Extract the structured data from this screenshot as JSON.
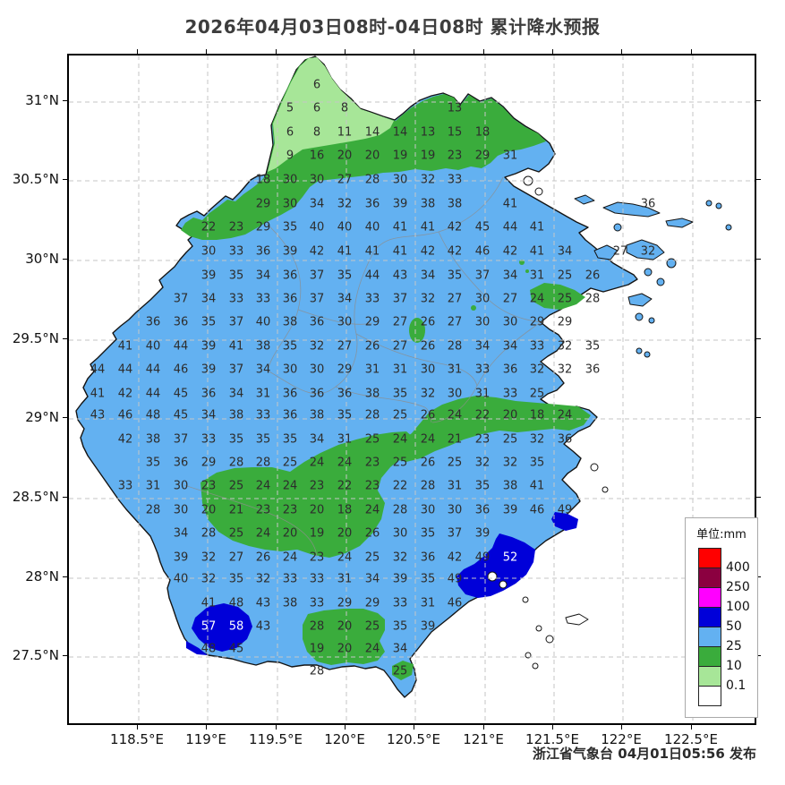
{
  "title": "2026年04月03日08时-04日08时 累计降水预报",
  "attribution": "浙江省气象台 04月01日05:56 发布",
  "colors": {
    "land": "#63b1f1",
    "green": "#3aac3c",
    "lightgreen": "#a7e698",
    "darkblue": "#0000d9",
    "magenta": "#ff00ff",
    "maroon": "#8b0040",
    "red": "#ff0000",
    "white": "#ffffff",
    "grid": "#c6c6c6"
  },
  "axes": {
    "x_ticks": [
      {
        "label": "118.5°E",
        "pos": 153
      },
      {
        "label": "119°E",
        "pos": 230
      },
      {
        "label": "119.5°E",
        "pos": 308
      },
      {
        "label": "120°E",
        "pos": 385
      },
      {
        "label": "120.5°E",
        "pos": 462
      },
      {
        "label": "121°E",
        "pos": 540
      },
      {
        "label": "121.5°E",
        "pos": 617
      },
      {
        "label": "122°E",
        "pos": 694
      },
      {
        "label": "122.5°E",
        "pos": 772
      }
    ],
    "y_ticks": [
      {
        "label": "31°N",
        "pos": 112
      },
      {
        "label": "30.5°N",
        "pos": 200
      },
      {
        "label": "30°N",
        "pos": 289
      },
      {
        "label": "29.5°N",
        "pos": 378
      },
      {
        "label": "29°N",
        "pos": 466
      },
      {
        "label": "28.5°N",
        "pos": 555
      },
      {
        "label": "28°N",
        "pos": 644
      },
      {
        "label": "27.5°N",
        "pos": 732
      }
    ]
  },
  "legend": {
    "title": "单位:mm",
    "entries": [
      {
        "color": "#ff0000",
        "label": "400"
      },
      {
        "color": "#8b0040",
        "label": "250"
      },
      {
        "color": "#ff00ff",
        "label": "100"
      },
      {
        "color": "#0000d9",
        "label": "50"
      },
      {
        "color": "#63b1f1",
        "label": "25"
      },
      {
        "color": "#3aac3c",
        "label": "10"
      },
      {
        "color": "#a7e698",
        "label": "0.1"
      },
      {
        "color": "#ffffff",
        "label": ""
      }
    ]
  },
  "map": {
    "values": [
      [
        352,
        93,
        6
      ],
      [
        322,
        119,
        5
      ],
      [
        352,
        119,
        6
      ],
      [
        383,
        119,
        8
      ],
      [
        506,
        119,
        13
      ],
      [
        322,
        146,
        6
      ],
      [
        352,
        146,
        8
      ],
      [
        383,
        146,
        11
      ],
      [
        414,
        146,
        14
      ],
      [
        445,
        146,
        14
      ],
      [
        476,
        146,
        13
      ],
      [
        506,
        146,
        15
      ],
      [
        537,
        146,
        18
      ],
      [
        322,
        172,
        9
      ],
      [
        352,
        172,
        16
      ],
      [
        383,
        172,
        20
      ],
      [
        414,
        172,
        20
      ],
      [
        445,
        172,
        19
      ],
      [
        476,
        172,
        19
      ],
      [
        506,
        172,
        23
      ],
      [
        537,
        172,
        29
      ],
      [
        568,
        172,
        31
      ],
      [
        292,
        199,
        18
      ],
      [
        322,
        199,
        30
      ],
      [
        352,
        199,
        30
      ],
      [
        383,
        199,
        27
      ],
      [
        414,
        199,
        28
      ],
      [
        445,
        199,
        30
      ],
      [
        476,
        199,
        32
      ],
      [
        506,
        199,
        33
      ],
      [
        292,
        226,
        29
      ],
      [
        322,
        226,
        30
      ],
      [
        352,
        226,
        34
      ],
      [
        383,
        226,
        32
      ],
      [
        414,
        226,
        36
      ],
      [
        445,
        226,
        39
      ],
      [
        476,
        226,
        38
      ],
      [
        506,
        226,
        38
      ],
      [
        568,
        226,
        41
      ],
      [
        722,
        226,
        36
      ],
      [
        231,
        252,
        22
      ],
      [
        262,
        252,
        23
      ],
      [
        292,
        252,
        29
      ],
      [
        322,
        252,
        35
      ],
      [
        352,
        252,
        40
      ],
      [
        383,
        252,
        40
      ],
      [
        414,
        252,
        40
      ],
      [
        445,
        252,
        41
      ],
      [
        476,
        252,
        41
      ],
      [
        506,
        252,
        42
      ],
      [
        537,
        252,
        45
      ],
      [
        568,
        252,
        44
      ],
      [
        598,
        252,
        41
      ],
      [
        231,
        279,
        30
      ],
      [
        262,
        279,
        33
      ],
      [
        292,
        279,
        36
      ],
      [
        322,
        279,
        39
      ],
      [
        352,
        279,
        42
      ],
      [
        383,
        279,
        41
      ],
      [
        414,
        279,
        41
      ],
      [
        445,
        279,
        41
      ],
      [
        476,
        279,
        42
      ],
      [
        506,
        279,
        42
      ],
      [
        537,
        279,
        46
      ],
      [
        568,
        279,
        42
      ],
      [
        598,
        279,
        41
      ],
      [
        629,
        279,
        34
      ],
      [
        691,
        279,
        27
      ],
      [
        722,
        279,
        32
      ],
      [
        231,
        306,
        39
      ],
      [
        262,
        306,
        35
      ],
      [
        292,
        306,
        34
      ],
      [
        322,
        306,
        36
      ],
      [
        352,
        306,
        37
      ],
      [
        383,
        306,
        35
      ],
      [
        414,
        306,
        44
      ],
      [
        445,
        306,
        43
      ],
      [
        476,
        306,
        34
      ],
      [
        506,
        306,
        35
      ],
      [
        537,
        306,
        37
      ],
      [
        568,
        306,
        34
      ],
      [
        598,
        306,
        31
      ],
      [
        629,
        306,
        25
      ],
      [
        660,
        306,
        26
      ],
      [
        200,
        332,
        37
      ],
      [
        231,
        332,
        34
      ],
      [
        262,
        332,
        33
      ],
      [
        292,
        332,
        33
      ],
      [
        322,
        332,
        36
      ],
      [
        352,
        332,
        37
      ],
      [
        383,
        332,
        34
      ],
      [
        414,
        332,
        33
      ],
      [
        445,
        332,
        37
      ],
      [
        476,
        332,
        32
      ],
      [
        506,
        332,
        27
      ],
      [
        537,
        332,
        30
      ],
      [
        568,
        332,
        27
      ],
      [
        598,
        332,
        24
      ],
      [
        629,
        332,
        25
      ],
      [
        660,
        332,
        28
      ],
      [
        169,
        358,
        36
      ],
      [
        200,
        358,
        36
      ],
      [
        231,
        358,
        35
      ],
      [
        262,
        358,
        37
      ],
      [
        292,
        358,
        40
      ],
      [
        322,
        358,
        38
      ],
      [
        352,
        358,
        36
      ],
      [
        383,
        358,
        30
      ],
      [
        414,
        358,
        29
      ],
      [
        445,
        358,
        27
      ],
      [
        476,
        358,
        26
      ],
      [
        506,
        358,
        27
      ],
      [
        537,
        358,
        30
      ],
      [
        568,
        358,
        30
      ],
      [
        598,
        358,
        29
      ],
      [
        629,
        358,
        29
      ],
      [
        138,
        385,
        41
      ],
      [
        169,
        385,
        40
      ],
      [
        200,
        385,
        44
      ],
      [
        231,
        385,
        39
      ],
      [
        262,
        385,
        41
      ],
      [
        292,
        385,
        38
      ],
      [
        322,
        385,
        35
      ],
      [
        352,
        385,
        32
      ],
      [
        383,
        385,
        27
      ],
      [
        414,
        385,
        26
      ],
      [
        445,
        385,
        27
      ],
      [
        476,
        385,
        26
      ],
      [
        506,
        385,
        28
      ],
      [
        537,
        385,
        34
      ],
      [
        568,
        385,
        34
      ],
      [
        598,
        385,
        33
      ],
      [
        629,
        385,
        32
      ],
      [
        660,
        385,
        35
      ],
      [
        107,
        411,
        44
      ],
      [
        138,
        411,
        44
      ],
      [
        169,
        411,
        44
      ],
      [
        200,
        411,
        46
      ],
      [
        231,
        411,
        39
      ],
      [
        262,
        411,
        37
      ],
      [
        292,
        411,
        34
      ],
      [
        322,
        411,
        30
      ],
      [
        352,
        411,
        30
      ],
      [
        383,
        411,
        29
      ],
      [
        414,
        411,
        31
      ],
      [
        445,
        411,
        31
      ],
      [
        476,
        411,
        30
      ],
      [
        506,
        411,
        31
      ],
      [
        537,
        411,
        33
      ],
      [
        568,
        411,
        36
      ],
      [
        598,
        411,
        32
      ],
      [
        629,
        411,
        32
      ],
      [
        660,
        411,
        36
      ],
      [
        107,
        438,
        41
      ],
      [
        138,
        438,
        42
      ],
      [
        169,
        438,
        44
      ],
      [
        200,
        438,
        45
      ],
      [
        231,
        438,
        36
      ],
      [
        262,
        438,
        34
      ],
      [
        292,
        438,
        31
      ],
      [
        322,
        438,
        36
      ],
      [
        352,
        438,
        36
      ],
      [
        383,
        438,
        36
      ],
      [
        414,
        438,
        38
      ],
      [
        445,
        438,
        35
      ],
      [
        476,
        438,
        32
      ],
      [
        506,
        438,
        30
      ],
      [
        537,
        438,
        31
      ],
      [
        568,
        438,
        33
      ],
      [
        598,
        438,
        25
      ],
      [
        107,
        462,
        43
      ],
      [
        138,
        462,
        46
      ],
      [
        169,
        462,
        48
      ],
      [
        200,
        462,
        45
      ],
      [
        231,
        462,
        34
      ],
      [
        262,
        462,
        38
      ],
      [
        292,
        462,
        33
      ],
      [
        322,
        462,
        36
      ],
      [
        352,
        462,
        38
      ],
      [
        383,
        462,
        35
      ],
      [
        414,
        462,
        28
      ],
      [
        445,
        462,
        25
      ],
      [
        476,
        462,
        26
      ],
      [
        506,
        462,
        24
      ],
      [
        537,
        462,
        22
      ],
      [
        568,
        462,
        20
      ],
      [
        598,
        462,
        18
      ],
      [
        629,
        462,
        24
      ],
      [
        138,
        489,
        42
      ],
      [
        169,
        489,
        38
      ],
      [
        200,
        489,
        37
      ],
      [
        231,
        489,
        33
      ],
      [
        262,
        489,
        35
      ],
      [
        292,
        489,
        35
      ],
      [
        322,
        489,
        35
      ],
      [
        352,
        489,
        34
      ],
      [
        383,
        489,
        31
      ],
      [
        414,
        489,
        25
      ],
      [
        445,
        489,
        24
      ],
      [
        476,
        489,
        24
      ],
      [
        506,
        489,
        21
      ],
      [
        537,
        489,
        23
      ],
      [
        568,
        489,
        25
      ],
      [
        598,
        489,
        32
      ],
      [
        629,
        489,
        36
      ],
      [
        169,
        515,
        35
      ],
      [
        200,
        515,
        36
      ],
      [
        231,
        515,
        29
      ],
      [
        262,
        515,
        28
      ],
      [
        292,
        515,
        28
      ],
      [
        322,
        515,
        25
      ],
      [
        352,
        515,
        24
      ],
      [
        383,
        515,
        24
      ],
      [
        414,
        515,
        23
      ],
      [
        445,
        515,
        25
      ],
      [
        476,
        515,
        26
      ],
      [
        506,
        515,
        25
      ],
      [
        537,
        515,
        32
      ],
      [
        568,
        515,
        32
      ],
      [
        598,
        515,
        35
      ],
      [
        138,
        541,
        33
      ],
      [
        169,
        541,
        31
      ],
      [
        200,
        541,
        30
      ],
      [
        231,
        541,
        23
      ],
      [
        262,
        541,
        25
      ],
      [
        292,
        541,
        24
      ],
      [
        322,
        541,
        24
      ],
      [
        352,
        541,
        23
      ],
      [
        383,
        541,
        22
      ],
      [
        414,
        541,
        23
      ],
      [
        445,
        541,
        22
      ],
      [
        476,
        541,
        28
      ],
      [
        506,
        541,
        31
      ],
      [
        537,
        541,
        35
      ],
      [
        568,
        541,
        38
      ],
      [
        598,
        541,
        41
      ],
      [
        169,
        568,
        28
      ],
      [
        200,
        568,
        30
      ],
      [
        231,
        568,
        20
      ],
      [
        262,
        568,
        21
      ],
      [
        292,
        568,
        23
      ],
      [
        322,
        568,
        23
      ],
      [
        352,
        568,
        20
      ],
      [
        383,
        568,
        18
      ],
      [
        414,
        568,
        24
      ],
      [
        445,
        568,
        28
      ],
      [
        476,
        568,
        30
      ],
      [
        506,
        568,
        30
      ],
      [
        537,
        568,
        36
      ],
      [
        568,
        568,
        39
      ],
      [
        598,
        568,
        46
      ],
      [
        629,
        568,
        49
      ],
      [
        200,
        594,
        34
      ],
      [
        231,
        594,
        28
      ],
      [
        262,
        594,
        25
      ],
      [
        292,
        594,
        24
      ],
      [
        322,
        594,
        20
      ],
      [
        352,
        594,
        19
      ],
      [
        383,
        594,
        20
      ],
      [
        414,
        594,
        26
      ],
      [
        445,
        594,
        30
      ],
      [
        476,
        594,
        35
      ],
      [
        506,
        594,
        37
      ],
      [
        537,
        594,
        39
      ],
      [
        200,
        621,
        39
      ],
      [
        231,
        621,
        32
      ],
      [
        262,
        621,
        27
      ],
      [
        292,
        621,
        26
      ],
      [
        322,
        621,
        24
      ],
      [
        352,
        621,
        23
      ],
      [
        383,
        621,
        24
      ],
      [
        414,
        621,
        25
      ],
      [
        445,
        621,
        32
      ],
      [
        476,
        621,
        36
      ],
      [
        506,
        621,
        42
      ],
      [
        537,
        621,
        49
      ],
      [
        200,
        645,
        40
      ],
      [
        231,
        645,
        32
      ],
      [
        262,
        645,
        35
      ],
      [
        292,
        645,
        32
      ],
      [
        322,
        645,
        33
      ],
      [
        352,
        645,
        33
      ],
      [
        383,
        645,
        31
      ],
      [
        414,
        645,
        34
      ],
      [
        445,
        645,
        39
      ],
      [
        476,
        645,
        35
      ],
      [
        506,
        645,
        49
      ],
      [
        231,
        672,
        41
      ],
      [
        262,
        672,
        48
      ],
      [
        292,
        672,
        43
      ],
      [
        322,
        672,
        38
      ],
      [
        352,
        672,
        33
      ],
      [
        383,
        672,
        29
      ],
      [
        414,
        672,
        29
      ],
      [
        445,
        672,
        33
      ],
      [
        476,
        672,
        31
      ],
      [
        506,
        672,
        46
      ],
      [
        292,
        698,
        43
      ],
      [
        352,
        698,
        28
      ],
      [
        383,
        698,
        20
      ],
      [
        414,
        698,
        25
      ],
      [
        445,
        698,
        35
      ],
      [
        476,
        698,
        39
      ],
      [
        231,
        723,
        48
      ],
      [
        262,
        723,
        45
      ],
      [
        352,
        723,
        19
      ],
      [
        383,
        723,
        20
      ],
      [
        414,
        723,
        24
      ],
      [
        445,
        723,
        34
      ],
      [
        352,
        748,
        28
      ],
      [
        445,
        748,
        25
      ]
    ],
    "values_light": [
      [
        231,
        698,
        57
      ],
      [
        262,
        698,
        58
      ],
      [
        568,
        621,
        52
      ]
    ]
  }
}
